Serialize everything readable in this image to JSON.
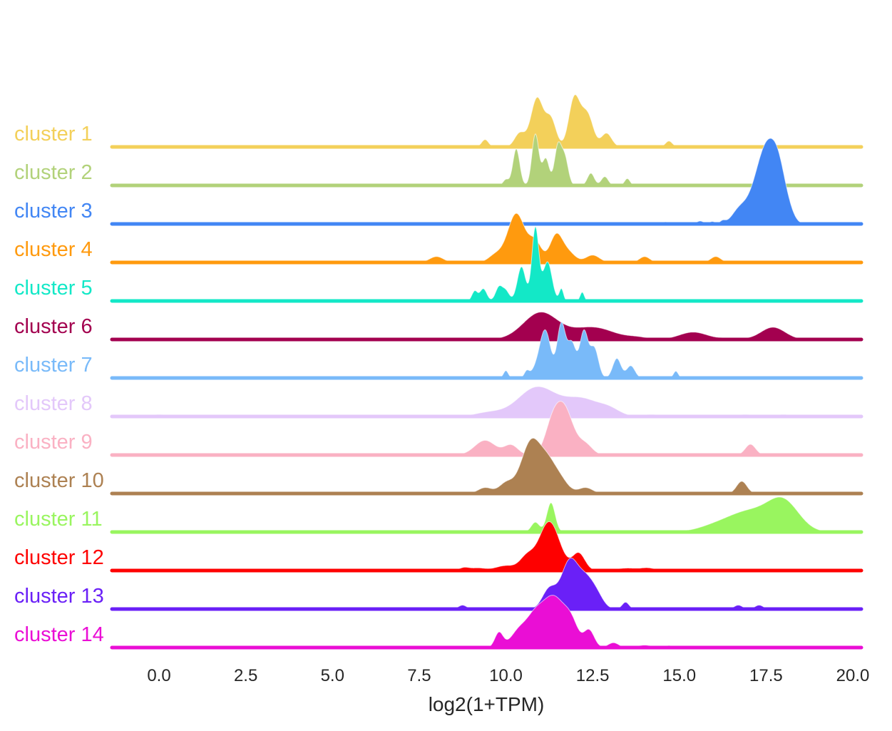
{
  "chart_data": {
    "type": "ridgeline",
    "title": "",
    "xlabel": "log2(1+TPM)",
    "ylabel": "",
    "xlim": [
      -1.4,
      20.0
    ],
    "xticks": [
      0.0,
      2.5,
      5.0,
      7.5,
      10.0,
      12.5,
      15.0,
      17.5,
      20.0
    ],
    "xtick_labels": [
      "0.0",
      "2.5",
      "5.0",
      "7.5",
      "10.0",
      "12.5",
      "15.0",
      "17.5",
      "20.0"
    ],
    "grid": false,
    "series": [
      {
        "name": "cluster 1",
        "color": "#f3d05a",
        "range": [
          9.0,
          15.0
        ],
        "components": [
          [
            10.9,
            0.18,
            1.0
          ],
          [
            11.3,
            0.15,
            0.55
          ],
          [
            11.95,
            0.15,
            0.8
          ],
          [
            12.2,
            0.2,
            0.5
          ],
          [
            12.4,
            0.15,
            0.35
          ],
          [
            12.9,
            0.15,
            0.28
          ],
          [
            10.4,
            0.15,
            0.28
          ],
          [
            9.4,
            0.1,
            0.15
          ],
          [
            14.7,
            0.1,
            0.12
          ]
        ]
      },
      {
        "name": "cluster 2",
        "color": "#b2d27a",
        "range": [
          9.7,
          13.7
        ],
        "components": [
          [
            10.3,
            0.1,
            0.75
          ],
          [
            10.85,
            0.1,
            1.05
          ],
          [
            11.15,
            0.1,
            0.55
          ],
          [
            11.5,
            0.1,
            0.8
          ],
          [
            11.7,
            0.1,
            0.55
          ],
          [
            12.45,
            0.1,
            0.25
          ],
          [
            12.85,
            0.1,
            0.18
          ],
          [
            13.5,
            0.08,
            0.14
          ],
          [
            10.0,
            0.08,
            0.12
          ]
        ]
      },
      {
        "name": "cluster 3",
        "color": "#4286f4",
        "range": [
          14.4,
          18.7
        ],
        "components": [
          [
            17.55,
            0.3,
            1.5
          ],
          [
            17.9,
            0.2,
            0.6
          ],
          [
            17.1,
            0.3,
            0.3
          ],
          [
            16.7,
            0.2,
            0.2
          ],
          [
            18.2,
            0.15,
            0.1
          ],
          [
            14.6,
            0.06,
            0.04
          ],
          [
            15.6,
            0.1,
            0.06
          ],
          [
            15.95,
            0.08,
            0.05
          ],
          [
            16.25,
            0.08,
            0.06
          ],
          [
            15.0,
            0.06,
            0.03
          ]
        ]
      },
      {
        "name": "cluster 4",
        "color": "#ff9a0e",
        "range": [
          7.5,
          16.5
        ],
        "components": [
          [
            10.3,
            0.25,
            1.0
          ],
          [
            11.45,
            0.18,
            0.55
          ],
          [
            10.85,
            0.18,
            0.4
          ],
          [
            8.0,
            0.2,
            0.12
          ],
          [
            9.7,
            0.2,
            0.15
          ],
          [
            12.5,
            0.2,
            0.15
          ],
          [
            14.0,
            0.15,
            0.12
          ],
          [
            16.05,
            0.15,
            0.12
          ],
          [
            11.8,
            0.2,
            0.2
          ]
        ]
      },
      {
        "name": "cluster 5",
        "color": "#13e8c7",
        "range": [
          8.9,
          12.3
        ],
        "components": [
          [
            10.85,
            0.1,
            1.5
          ],
          [
            10.45,
            0.12,
            0.7
          ],
          [
            11.2,
            0.13,
            0.8
          ],
          [
            9.8,
            0.1,
            0.28
          ],
          [
            9.1,
            0.08,
            0.2
          ],
          [
            9.35,
            0.1,
            0.25
          ],
          [
            11.6,
            0.06,
            0.25
          ],
          [
            12.2,
            0.06,
            0.18
          ],
          [
            10.0,
            0.1,
            0.2
          ]
        ]
      },
      {
        "name": "cluster 6",
        "color": "#a3004f",
        "range": [
          9.0,
          18.7
        ],
        "components": [
          [
            11.0,
            0.5,
            0.55
          ],
          [
            12.5,
            0.6,
            0.25
          ],
          [
            15.4,
            0.4,
            0.15
          ],
          [
            17.7,
            0.35,
            0.25
          ],
          [
            13.8,
            0.3,
            0.04
          ],
          [
            16.5,
            0.3,
            0.03
          ]
        ]
      },
      {
        "name": "cluster 7",
        "color": "#79baf9",
        "range": [
          9.7,
          15.2
        ],
        "components": [
          [
            11.6,
            0.12,
            1.1
          ],
          [
            12.25,
            0.12,
            0.95
          ],
          [
            11.15,
            0.15,
            0.75
          ],
          [
            11.9,
            0.12,
            0.7
          ],
          [
            12.55,
            0.12,
            0.6
          ],
          [
            13.2,
            0.12,
            0.4
          ],
          [
            13.6,
            0.12,
            0.25
          ],
          [
            10.0,
            0.07,
            0.15
          ],
          [
            10.6,
            0.07,
            0.12
          ],
          [
            14.9,
            0.07,
            0.14
          ],
          [
            11.0,
            0.2,
            0.3
          ]
        ]
      },
      {
        "name": "cluster 8",
        "color": "#e3c8fa",
        "range": [
          -0.3,
          18.5
        ],
        "components": [
          [
            10.9,
            0.55,
            0.6
          ],
          [
            12.2,
            0.5,
            0.35
          ],
          [
            13.0,
            0.3,
            0.12
          ],
          [
            9.5,
            0.4,
            0.08
          ],
          [
            0.0,
            0.25,
            0.04
          ],
          [
            14.2,
            0.3,
            0.04
          ],
          [
            16.9,
            0.3,
            0.04
          ],
          [
            18.0,
            0.25,
            0.04
          ]
        ]
      },
      {
        "name": "cluster 9",
        "color": "#fab1c3",
        "range": [
          8.7,
          17.5
        ],
        "components": [
          [
            11.65,
            0.28,
            1.0
          ],
          [
            11.3,
            0.2,
            0.35
          ],
          [
            9.4,
            0.3,
            0.3
          ],
          [
            10.15,
            0.2,
            0.2
          ],
          [
            17.05,
            0.15,
            0.22
          ],
          [
            12.3,
            0.2,
            0.2
          ]
        ]
      },
      {
        "name": "cluster 10",
        "color": "#ad8152",
        "range": [
          8.9,
          17.3
        ],
        "components": [
          [
            10.75,
            0.3,
            1.1
          ],
          [
            11.5,
            0.25,
            0.35
          ],
          [
            9.4,
            0.2,
            0.12
          ],
          [
            12.3,
            0.2,
            0.12
          ],
          [
            16.8,
            0.15,
            0.25
          ],
          [
            10.0,
            0.2,
            0.2
          ],
          [
            11.2,
            0.2,
            0.3
          ]
        ]
      },
      {
        "name": "cluster 11",
        "color": "#99f55f",
        "range": [
          8.7,
          19.2
        ],
        "components": [
          [
            18.0,
            0.45,
            0.6
          ],
          [
            17.0,
            0.6,
            0.4
          ],
          [
            16.0,
            0.5,
            0.1
          ],
          [
            11.3,
            0.12,
            0.6
          ],
          [
            10.85,
            0.12,
            0.2
          ],
          [
            12.5,
            0.3,
            0.02
          ],
          [
            14.8,
            0.2,
            0.03
          ],
          [
            9.0,
            0.2,
            0.015
          ],
          [
            10.1,
            0.2,
            0.015
          ]
        ]
      },
      {
        "name": "cluster 12",
        "color": "#fe0000",
        "range": [
          8.0,
          17.3
        ],
        "components": [
          [
            11.25,
            0.3,
            1.0
          ],
          [
            10.6,
            0.2,
            0.25
          ],
          [
            12.1,
            0.18,
            0.35
          ],
          [
            9.2,
            0.2,
            0.05
          ],
          [
            8.8,
            0.15,
            0.06
          ],
          [
            13.5,
            0.3,
            0.05
          ],
          [
            14.1,
            0.2,
            0.05
          ],
          [
            16.2,
            0.2,
            0.02
          ],
          [
            17.0,
            0.2,
            0.02
          ],
          [
            10.0,
            0.3,
            0.1
          ]
        ]
      },
      {
        "name": "cluster 13",
        "color": "#6a20f7",
        "range": [
          8.5,
          17.5
        ],
        "components": [
          [
            11.85,
            0.25,
            1.0
          ],
          [
            12.3,
            0.2,
            0.45
          ],
          [
            12.6,
            0.2,
            0.3
          ],
          [
            11.25,
            0.2,
            0.4
          ],
          [
            13.45,
            0.1,
            0.14
          ],
          [
            8.75,
            0.12,
            0.08
          ],
          [
            16.7,
            0.12,
            0.08
          ],
          [
            17.3,
            0.12,
            0.08
          ]
        ]
      },
      {
        "name": "cluster 14",
        "color": "#ea0ed5",
        "range": [
          9.5,
          15.0
        ],
        "components": [
          [
            11.45,
            0.3,
            0.85
          ],
          [
            11.0,
            0.3,
            0.5
          ],
          [
            12.4,
            0.15,
            0.35
          ],
          [
            10.4,
            0.25,
            0.35
          ],
          [
            9.8,
            0.12,
            0.3
          ],
          [
            10.8,
            0.2,
            0.2
          ],
          [
            13.1,
            0.15,
            0.1
          ],
          [
            14.0,
            0.2,
            0.05
          ],
          [
            14.7,
            0.1,
            0.04
          ],
          [
            11.9,
            0.2,
            0.4
          ]
        ]
      }
    ]
  }
}
